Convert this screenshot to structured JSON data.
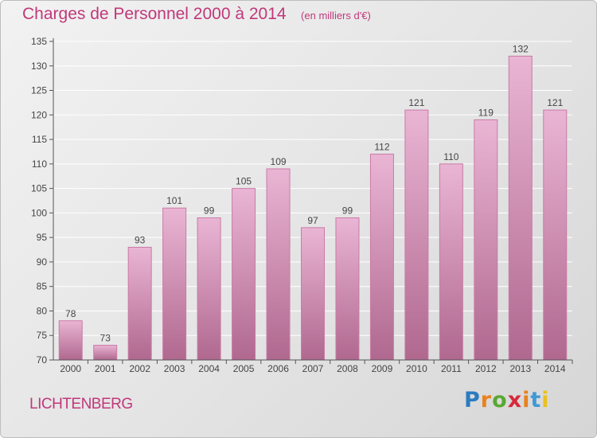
{
  "title": "Charges de Personnel 2000 à 2014",
  "subtitle": "(en milliers d'€)",
  "commune": "LICHTENBERG",
  "logo": {
    "letters": [
      "P",
      "r",
      "o",
      "x",
      "i",
      "t",
      "i"
    ],
    "colors": [
      "#2b7bc0",
      "#e8821e",
      "#5aa832",
      "#d8283c",
      "#e8821e",
      "#3f9ad6",
      "#e8c21e"
    ]
  },
  "colors": {
    "text": "#c0387a",
    "bar_top": "#eab5d4",
    "bar_bottom": "#b0688f",
    "bar_stroke": "#c97ba6",
    "axis": "#555555",
    "grid": "#ffffff"
  },
  "chart_data": {
    "type": "bar",
    "categories": [
      "2000",
      "2001",
      "2002",
      "2003",
      "2004",
      "2005",
      "2006",
      "2007",
      "2008",
      "2009",
      "2010",
      "2011",
      "2012",
      "2013",
      "2014"
    ],
    "values": [
      78,
      73,
      93,
      101,
      99,
      105,
      109,
      97,
      99,
      112,
      121,
      110,
      119,
      132,
      121
    ],
    "ylim": [
      70,
      135
    ],
    "yticks": [
      70,
      75,
      80,
      85,
      90,
      95,
      100,
      105,
      110,
      115,
      120,
      125,
      130,
      135
    ],
    "grid": true,
    "legend": false
  }
}
